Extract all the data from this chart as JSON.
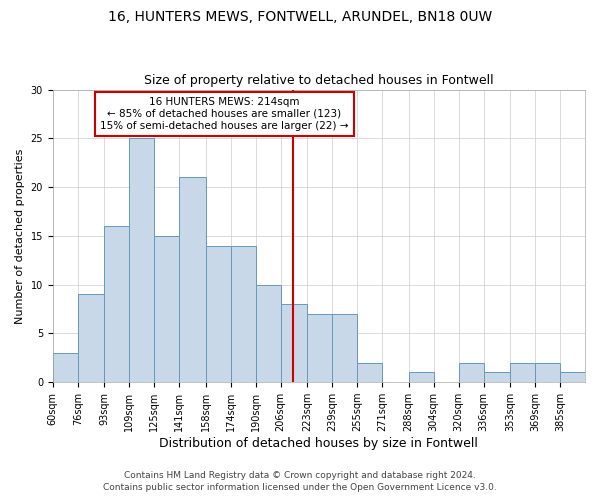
{
  "title1": "16, HUNTERS MEWS, FONTWELL, ARUNDEL, BN18 0UW",
  "title2": "Size of property relative to detached houses in Fontwell",
  "xlabel": "Distribution of detached houses by size in Fontwell",
  "ylabel": "Number of detached properties",
  "bar_heights": [
    3,
    9,
    16,
    25,
    15,
    21,
    14,
    14,
    10,
    8,
    7,
    7,
    2,
    0,
    1,
    0,
    2,
    1,
    2,
    2,
    1
  ],
  "bin_labels": [
    "60sqm",
    "76sqm",
    "93sqm",
    "109sqm",
    "125sqm",
    "141sqm",
    "158sqm",
    "174sqm",
    "190sqm",
    "206sqm",
    "223sqm",
    "239sqm",
    "255sqm",
    "271sqm",
    "288sqm",
    "304sqm",
    "320sqm",
    "336sqm",
    "353sqm",
    "369sqm",
    "385sqm"
  ],
  "bin_edges": [
    60,
    76,
    93,
    109,
    125,
    141,
    158,
    174,
    190,
    206,
    223,
    239,
    255,
    271,
    288,
    304,
    320,
    336,
    353,
    369,
    385,
    401
  ],
  "bar_color": "#c8d8e8",
  "bar_edge_color": "#6699bb",
  "vline_x": 214,
  "vline_color": "#cc0000",
  "annotation_text": "16 HUNTERS MEWS: 214sqm\n← 85% of detached houses are smaller (123)\n15% of semi-detached houses are larger (22) →",
  "annotation_box_color": "#cc0000",
  "ylim": [
    0,
    30
  ],
  "yticks": [
    0,
    5,
    10,
    15,
    20,
    25,
    30
  ],
  "footer1": "Contains HM Land Registry data © Crown copyright and database right 2024.",
  "footer2": "Contains public sector information licensed under the Open Government Licence v3.0.",
  "title1_fontsize": 10,
  "title2_fontsize": 9,
  "xlabel_fontsize": 9,
  "ylabel_fontsize": 8,
  "tick_fontsize": 7,
  "annot_fontsize": 7.5,
  "footer_fontsize": 6.5
}
